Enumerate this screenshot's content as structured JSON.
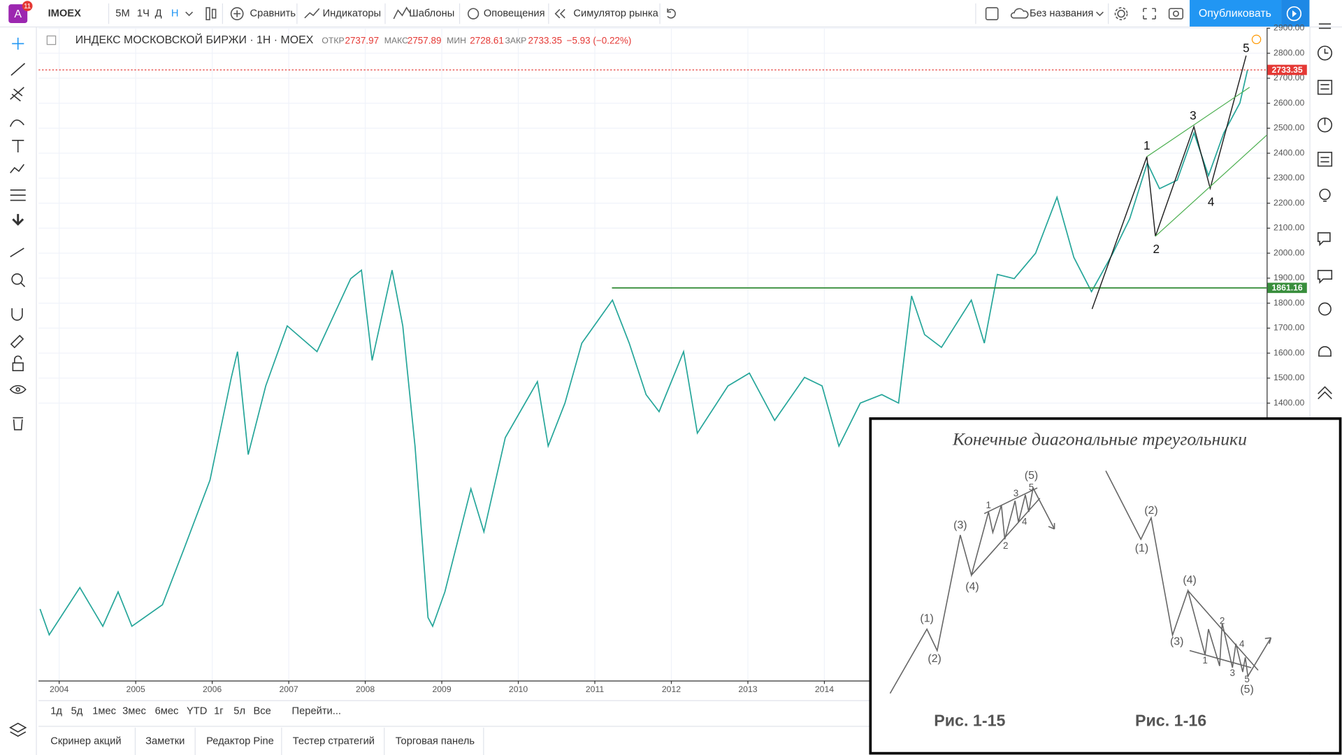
{
  "toolbar": {
    "avatar": "A",
    "badge": "11",
    "symbol": "IMOEX",
    "intervals": [
      "5М",
      "1Ч",
      "Д",
      "Н"
    ],
    "buttons": [
      "Сравнить",
      "Индикаторы",
      "Шаблоны",
      "Оповещения",
      "Симулятор рынка"
    ],
    "layout_name": "Без названия",
    "publish": "Опубликовать"
  },
  "chart_data": {
    "type": "line",
    "title": "ИНДЕКС МОСКОВСКОЙ БИРЖИ · 1Н · MOEX",
    "ohlc": [
      {
        "label": "ОТКР",
        "value": 2737.97
      },
      {
        "label": "МАКС",
        "value": 2757.89
      },
      {
        "label": "МИН",
        "value": 2728.61
      },
      {
        "label": "ЗАКР",
        "value": 2733.35
      }
    ],
    "change": "−5.93 (−0.22%)",
    "x": [
      2003.75,
      2003.87,
      2004.27,
      2004.57,
      2004.77,
      2004.95,
      2005.35,
      2005.63,
      2005.97,
      2006.25,
      2006.33,
      2006.47,
      2006.7,
      2006.98,
      2007.37,
      2007.81,
      2007.95,
      2008.09,
      2008.35,
      2008.49,
      2008.65,
      2008.82,
      2008.88,
      2009.04,
      2009.38,
      2009.55,
      2009.83,
      2010.25,
      2010.39,
      2010.61,
      2010.83,
      2011.23,
      2011.45,
      2011.67,
      2011.84,
      2012.16,
      2012.34,
      2012.74,
      2013.02,
      2013.35,
      2013.74,
      2013.97,
      2014.19,
      2014.47,
      2014.75,
      2014.97,
      2015.14,
      2015.31,
      2015.53,
      2015.92,
      2016.09,
      2016.26,
      2016.48,
      2016.76,
      2017.04,
      2017.26,
      2017.49,
      2017.77,
      2017.99,
      2018.22,
      2018.38,
      2018.61,
      2018.83,
      2019.02,
      2019.22,
      2019.43,
      2019.53
    ],
    "values": [
      576,
      473,
      662,
      507,
      645,
      507,
      593,
      816,
      1091,
      1503,
      1606,
      1194,
      1469,
      1709,
      1606,
      1898,
      1932,
      1571,
      1932,
      1709,
      1228,
      542,
      507,
      645,
      1057,
      885,
      1262,
      1486,
      1228,
      1400,
      1640,
      1812,
      1640,
      1434,
      1366,
      1606,
      1280,
      1469,
      1520,
      1331,
      1503,
      1469,
      1228,
      1400,
      1434,
      1400,
      1829,
      1674,
      1623,
      1812,
      1640,
      1915,
      1898,
      2000,
      2224,
      1983,
      1846,
      2000,
      2138,
      2361,
      2258,
      2292,
      2481,
      2310,
      2481,
      2601,
      2733.35
    ],
    "color": "#26a69a",
    "xlim": [
      2003.73,
      2019.78
    ],
    "xticks": [
      2004,
      2005,
      2006,
      2007,
      2008,
      2009,
      2010,
      2011,
      2012,
      2013,
      2014
    ],
    "ylim": [
      290,
      2900
    ],
    "yticks": [
      {
        "value": 1400,
        "label": "1400.00"
      },
      {
        "value": 1500,
        "label": "1500.00"
      },
      {
        "value": 1600,
        "label": "1600.00"
      },
      {
        "value": 1700,
        "label": "1700.00"
      },
      {
        "value": 1800,
        "label": "1800.00"
      },
      {
        "value": 1900,
        "label": "1900.00"
      },
      {
        "value": 2000,
        "label": "2000.00"
      },
      {
        "value": 2100,
        "label": "2100.00"
      },
      {
        "value": 2200,
        "label": "2200.00"
      },
      {
        "value": 2300,
        "label": "2300.00"
      },
      {
        "value": 2400,
        "label": "2400.00"
      },
      {
        "value": 2500,
        "label": "2500.00"
      },
      {
        "value": 2600,
        "label": "2600.00"
      },
      {
        "value": 2700,
        "label": "2700.00"
      },
      {
        "value": 2800,
        "label": "2800.00"
      },
      {
        "value": 2900,
        "label": "2900.00"
      }
    ],
    "grid": true,
    "price_lines": [
      {
        "value": 2733.35,
        "color": "#e53935"
      },
      {
        "value": 1861.16,
        "color": "#388e3c"
      }
    ],
    "wave_labels": [
      "1",
      "2",
      "3",
      "4",
      "5"
    ]
  },
  "range_bar": [
    "1д",
    "5д",
    "1мес",
    "3мес",
    "6мес",
    "YTD",
    "1г",
    "5л",
    "Все",
    "Перейти..."
  ],
  "bottom_tabs": [
    "Скринер акций",
    "Заметки",
    "Редактор Pine",
    "Тестер стратегий",
    "Торговая панель"
  ],
  "inset": {
    "title": "Конечные диагональные треугольники",
    "figures": [
      "Рис. 1-15",
      "Рис. 1-16"
    ],
    "labels_1_15": [
      "(1)",
      "(2)",
      "(3)",
      "(4)",
      "(5)",
      "1",
      "2",
      "3",
      "4",
      "5"
    ],
    "labels_1_16": [
      "(1)",
      "(2)",
      "(3)",
      "(4)",
      "(5)",
      "1",
      "2",
      "3",
      "4",
      "5"
    ]
  }
}
